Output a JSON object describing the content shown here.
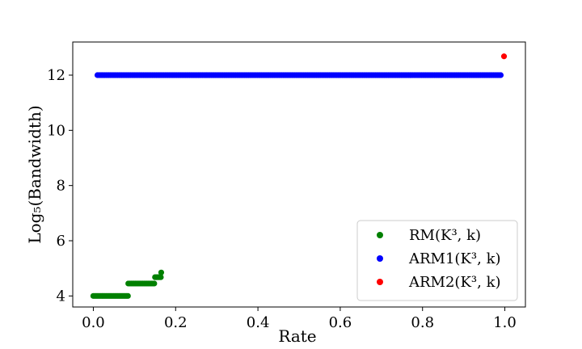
{
  "chart_data": {
    "type": "scatter",
    "title": "",
    "xlabel": "Rate",
    "ylabel": "Log₅(Bandwidth)",
    "xlim": [
      -0.05,
      1.05
    ],
    "ylim": [
      3.6,
      13.2
    ],
    "xticks": [
      0.0,
      0.2,
      0.4,
      0.6,
      0.8,
      1.0
    ],
    "xtick_labels": [
      "0.0",
      "0.2",
      "0.4",
      "0.6",
      "0.8",
      "1.0"
    ],
    "yticks": [
      4,
      6,
      8,
      10,
      12
    ],
    "ytick_labels": [
      "4",
      "6",
      "8",
      "10",
      "12"
    ],
    "grid": false,
    "legend_position": "lower-right",
    "series": [
      {
        "name": "RM(K³, k)",
        "color": "#008000",
        "segments": [
          {
            "x_start": 0.0,
            "x_end": 0.085,
            "y": 4.0
          },
          {
            "x_start": 0.085,
            "x_end": 0.15,
            "y": 4.45
          },
          {
            "x_start": 0.15,
            "x_end": 0.165,
            "y": 4.68
          }
        ],
        "points": [
          {
            "x": 0.165,
            "y": 4.85
          }
        ]
      },
      {
        "name": "ARM1(K³, k)",
        "color": "#0000ff",
        "segments": [
          {
            "x_start": 0.01,
            "x_end": 0.99,
            "y": 12.0
          }
        ],
        "points": []
      },
      {
        "name": "ARM2(K³, k)",
        "color": "#ff0000",
        "segments": [],
        "points": [
          {
            "x": 0.998,
            "y": 12.68
          }
        ]
      }
    ]
  }
}
